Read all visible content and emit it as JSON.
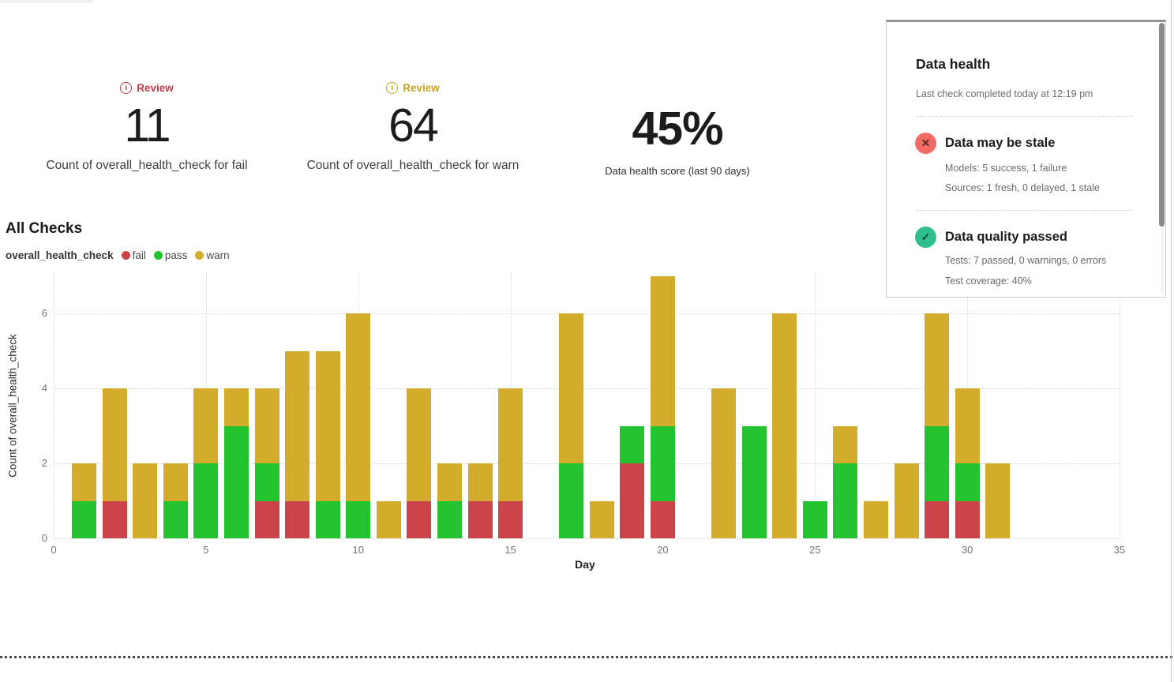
{
  "colors": {
    "fail": "#cb444a",
    "pass": "#22c32e",
    "warn": "#d4ac2b",
    "review_fail": "#c13a4b",
    "review_warn": "#c9a227"
  },
  "kpi_row": {
    "fail_kpi": {
      "badge_label": "Review",
      "value": "11",
      "label": "Count of overall_health_check for fail"
    },
    "warn_kpi": {
      "badge_label": "Review",
      "value": "64",
      "label": "Count of overall_health_check for warn"
    },
    "score_kpi": {
      "value": "45%",
      "label": "Data health score (last 90 days)"
    }
  },
  "all_checks": {
    "title": "All Checks",
    "series_name": "overall_health_check",
    "legend": [
      {
        "label": "fail",
        "color": "#cb444a"
      },
      {
        "label": "pass",
        "color": "#22c32e"
      },
      {
        "label": "warn",
        "color": "#d4ac2b"
      }
    ]
  },
  "chart_data": {
    "type": "bar",
    "stacked": true,
    "title": "All Checks",
    "series_name": "overall_health_check",
    "xlabel": "Day",
    "ylabel": "Count of overall_health_check",
    "xlim": [
      0,
      35
    ],
    "ylim": [
      0,
      7
    ],
    "x_ticks": [
      0,
      5,
      10,
      15,
      20,
      25,
      30,
      35
    ],
    "y_ticks": [
      0,
      2,
      4,
      6
    ],
    "grid": "dotted",
    "legend_position": "top-left",
    "stack_order": [
      "fail",
      "pass",
      "warn"
    ],
    "series_colors": {
      "fail": "#cb444a",
      "pass": "#22c32e",
      "warn": "#d4ac2b"
    },
    "bars": [
      {
        "day": 1,
        "fail": 0,
        "pass": 1,
        "warn": 1
      },
      {
        "day": 2,
        "fail": 1,
        "pass": 0,
        "warn": 3
      },
      {
        "day": 3,
        "fail": 0,
        "pass": 0,
        "warn": 2
      },
      {
        "day": 4,
        "fail": 0,
        "pass": 1,
        "warn": 1
      },
      {
        "day": 5,
        "fail": 0,
        "pass": 2,
        "warn": 2
      },
      {
        "day": 6,
        "fail": 0,
        "pass": 3,
        "warn": 1
      },
      {
        "day": 7,
        "fail": 1,
        "pass": 1,
        "warn": 2
      },
      {
        "day": 8,
        "fail": 1,
        "pass": 0,
        "warn": 4
      },
      {
        "day": 9,
        "fail": 0,
        "pass": 1,
        "warn": 4
      },
      {
        "day": 10,
        "fail": 0,
        "pass": 1,
        "warn": 5
      },
      {
        "day": 11,
        "fail": 0,
        "pass": 0,
        "warn": 1
      },
      {
        "day": 12,
        "fail": 1,
        "pass": 0,
        "warn": 3
      },
      {
        "day": 13,
        "fail": 0,
        "pass": 1,
        "warn": 1
      },
      {
        "day": 14,
        "fail": 1,
        "pass": 0,
        "warn": 1
      },
      {
        "day": 15,
        "fail": 1,
        "pass": 0,
        "warn": 3
      },
      {
        "day": 17,
        "fail": 0,
        "pass": 2,
        "warn": 4
      },
      {
        "day": 18,
        "fail": 0,
        "pass": 0,
        "warn": 1
      },
      {
        "day": 19,
        "fail": 2,
        "pass": 1,
        "warn": 0
      },
      {
        "day": 20,
        "fail": 1,
        "pass": 2,
        "warn": 4
      },
      {
        "day": 22,
        "fail": 0,
        "pass": 0,
        "warn": 4
      },
      {
        "day": 23,
        "fail": 0,
        "pass": 3,
        "warn": 0
      },
      {
        "day": 24,
        "fail": 0,
        "pass": 0,
        "warn": 6
      },
      {
        "day": 25,
        "fail": 0,
        "pass": 1,
        "warn": 0
      },
      {
        "day": 26,
        "fail": 0,
        "pass": 2,
        "warn": 1
      },
      {
        "day": 27,
        "fail": 0,
        "pass": 0,
        "warn": 1
      },
      {
        "day": 28,
        "fail": 0,
        "pass": 0,
        "warn": 2
      },
      {
        "day": 29,
        "fail": 1,
        "pass": 2,
        "warn": 3
      },
      {
        "day": 30,
        "fail": 1,
        "pass": 1,
        "warn": 2
      },
      {
        "day": 31,
        "fail": 0,
        "pass": 0,
        "warn": 2
      }
    ]
  },
  "data_health_panel": {
    "title": "Data health",
    "subtitle": "Last check completed today at 12:19 pm",
    "statuses": [
      {
        "glyph": "✕",
        "icon_bg": "#f06b64",
        "title": "Data may be stale",
        "lines": [
          "Models: 5 success, 1 failure",
          "Sources: 1 fresh, 0 delayed, 1 stale"
        ]
      },
      {
        "glyph": "✓",
        "icon_bg": "#2fbf8f",
        "title": "Data quality passed",
        "lines": [
          "Tests: 7 passed, 0 warnings, 0 errors",
          "Test coverage: 40%"
        ]
      }
    ]
  }
}
